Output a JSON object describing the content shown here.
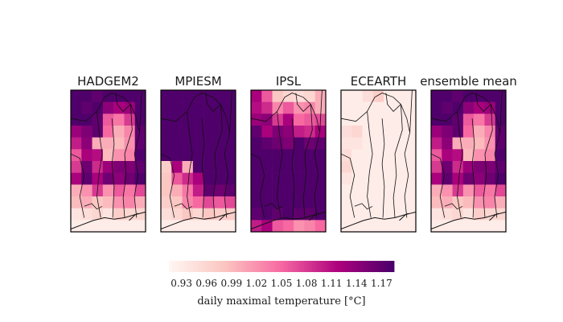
{
  "chart_data": {
    "type": "heatmap",
    "colormap": "RdPu-like (white → pink → magenta → dark purple)",
    "colorbar": {
      "label": "daily maximal temperature [°C]",
      "vmin": 0.915,
      "vmax": 1.185,
      "ticks": [
        "0.93",
        "0.96",
        "0.99",
        "1.02",
        "1.05",
        "1.08",
        "1.11",
        "1.14",
        "1.17"
      ],
      "placement": "bottom-center, horizontal"
    },
    "panels": [
      {
        "title": "HADGEM2",
        "grid": [
          [
            1.18,
            1.18,
            1.17,
            1.18,
            1.18,
            1.18,
            1.18
          ],
          [
            1.18,
            1.17,
            1.18,
            1.14,
            1.12,
            1.13,
            1.18
          ],
          [
            1.18,
            1.18,
            1.17,
            1.06,
            1.04,
            1.08,
            1.18
          ],
          [
            1.13,
            1.15,
            1.17,
            1.05,
            1.0,
            1.03,
            1.17
          ],
          [
            1.1,
            1.14,
            1.0,
            1.0,
            0.99,
            1.02,
            1.17
          ],
          [
            1.06,
            1.12,
            1.11,
            0.99,
            1.02,
            1.03,
            1.18
          ],
          [
            1.08,
            1.16,
            1.09,
            1.13,
            1.15,
            1.15,
            1.17
          ],
          [
            1.12,
            1.17,
            1.12,
            1.16,
            1.14,
            1.16,
            1.18
          ],
          [
            1.0,
            1.02,
            1.08,
            1.02,
            1.06,
            1.04,
            1.07
          ],
          [
            0.99,
            1.0,
            0.98,
            0.99,
            1.02,
            1.03,
            1.0
          ],
          [
            0.94,
            0.95,
            0.96,
            0.94,
            0.97,
            0.96,
            0.96
          ],
          [
            0.93,
            0.93,
            0.93,
            0.93,
            0.93,
            0.93,
            0.93
          ]
        ]
      },
      {
        "title": "MPIESM",
        "grid": [
          [
            1.18,
            1.18,
            1.18,
            1.18,
            1.18,
            1.18,
            1.18
          ],
          [
            1.18,
            1.18,
            1.18,
            1.18,
            1.18,
            1.18,
            1.18
          ],
          [
            1.18,
            1.18,
            1.18,
            1.18,
            1.18,
            1.18,
            1.18
          ],
          [
            1.18,
            1.18,
            1.18,
            1.18,
            1.18,
            1.18,
            1.18
          ],
          [
            1.18,
            1.18,
            1.18,
            1.18,
            1.18,
            1.18,
            1.18
          ],
          [
            1.18,
            1.18,
            1.18,
            1.18,
            1.18,
            1.18,
            1.18
          ],
          [
            0.97,
            1.12,
            1.0,
            1.18,
            1.18,
            1.18,
            1.18
          ],
          [
            0.98,
            1.06,
            1.09,
            1.12,
            1.18,
            1.18,
            1.18
          ],
          [
            0.98,
            1.0,
            1.04,
            1.1,
            1.17,
            1.16,
            1.17
          ],
          [
            0.97,
            0.98,
            1.03,
            1.05,
            1.07,
            1.06,
            1.07
          ],
          [
            0.95,
            0.96,
            0.98,
            0.96,
            0.98,
            0.97,
            0.97
          ],
          [
            0.93,
            0.93,
            0.93,
            0.93,
            0.93,
            0.93,
            0.93
          ]
        ]
      },
      {
        "title": "IPSL",
        "grid": [
          [
            1.12,
            1.06,
            0.98,
            0.96,
            0.95,
            0.96,
            1.0
          ],
          [
            1.11,
            1.09,
            1.03,
            1.06,
            1.02,
            1.03,
            1.0
          ],
          [
            1.13,
            1.14,
            1.08,
            1.12,
            1.05,
            1.06,
            1.07
          ],
          [
            1.17,
            1.12,
            1.15,
            1.14,
            1.1,
            1.09,
            1.12
          ],
          [
            1.18,
            1.17,
            1.16,
            1.15,
            1.18,
            1.16,
            1.17
          ],
          [
            1.18,
            1.18,
            1.18,
            1.18,
            1.18,
            1.18,
            1.18
          ],
          [
            1.18,
            1.18,
            1.18,
            1.18,
            1.18,
            1.18,
            1.18
          ],
          [
            1.18,
            1.18,
            1.18,
            1.18,
            1.18,
            1.18,
            1.18
          ],
          [
            1.18,
            1.18,
            1.18,
            1.18,
            1.18,
            1.18,
            1.18
          ],
          [
            1.18,
            1.18,
            1.18,
            1.18,
            1.18,
            1.18,
            1.18
          ],
          [
            1.17,
            1.18,
            1.17,
            1.18,
            1.17,
            1.17,
            1.18
          ],
          [
            1.1,
            1.12,
            1.06,
            1.05,
            1.02,
            1.03,
            1.05
          ]
        ]
      },
      {
        "title": "ECEARTH",
        "grid": [
          [
            0.93,
            0.93,
            0.95,
            0.97,
            0.93,
            0.93,
            0.93
          ],
          [
            0.93,
            0.93,
            0.93,
            0.93,
            0.93,
            0.93,
            0.93
          ],
          [
            0.93,
            0.93,
            0.93,
            0.93,
            0.93,
            0.93,
            0.93
          ],
          [
            0.95,
            0.96,
            0.93,
            0.93,
            0.93,
            0.93,
            0.93
          ],
          [
            0.94,
            0.94,
            0.93,
            0.93,
            0.93,
            0.93,
            0.93
          ],
          [
            0.95,
            0.93,
            0.93,
            0.93,
            0.93,
            0.93,
            0.93
          ],
          [
            0.96,
            0.93,
            0.93,
            0.93,
            0.93,
            0.93,
            0.93
          ],
          [
            0.94,
            0.93,
            0.93,
            0.93,
            0.93,
            0.93,
            0.93
          ],
          [
            0.93,
            0.93,
            0.93,
            0.93,
            0.93,
            0.93,
            0.93
          ],
          [
            0.93,
            0.93,
            0.93,
            0.93,
            0.93,
            0.93,
            0.93
          ],
          [
            0.93,
            0.93,
            0.93,
            0.93,
            0.93,
            0.93,
            0.93
          ],
          [
            0.93,
            0.93,
            0.93,
            0.93,
            0.93,
            0.93,
            0.93
          ]
        ]
      },
      {
        "title": "ensemble mean",
        "grid": [
          [
            1.18,
            1.18,
            1.17,
            1.18,
            1.18,
            1.18,
            1.18
          ],
          [
            1.18,
            1.17,
            1.18,
            1.14,
            1.12,
            1.13,
            1.18
          ],
          [
            1.18,
            1.18,
            1.17,
            1.06,
            1.04,
            1.08,
            1.18
          ],
          [
            1.13,
            1.15,
            1.17,
            1.05,
            1.0,
            1.03,
            1.17
          ],
          [
            1.1,
            1.14,
            1.0,
            1.0,
            0.99,
            1.02,
            1.17
          ],
          [
            1.06,
            1.12,
            1.11,
            0.99,
            1.02,
            1.03,
            1.18
          ],
          [
            1.08,
            1.16,
            1.09,
            1.13,
            1.15,
            1.15,
            1.17
          ],
          [
            1.12,
            1.17,
            1.12,
            1.16,
            1.14,
            1.16,
            1.18
          ],
          [
            1.0,
            1.02,
            1.08,
            1.02,
            1.06,
            1.04,
            1.07
          ],
          [
            0.99,
            1.0,
            0.98,
            0.99,
            1.02,
            1.03,
            1.0
          ],
          [
            0.94,
            0.95,
            0.96,
            0.94,
            0.97,
            0.96,
            0.96
          ],
          [
            0.93,
            0.93,
            0.93,
            0.93,
            0.93,
            0.93,
            0.93
          ]
        ]
      }
    ]
  }
}
